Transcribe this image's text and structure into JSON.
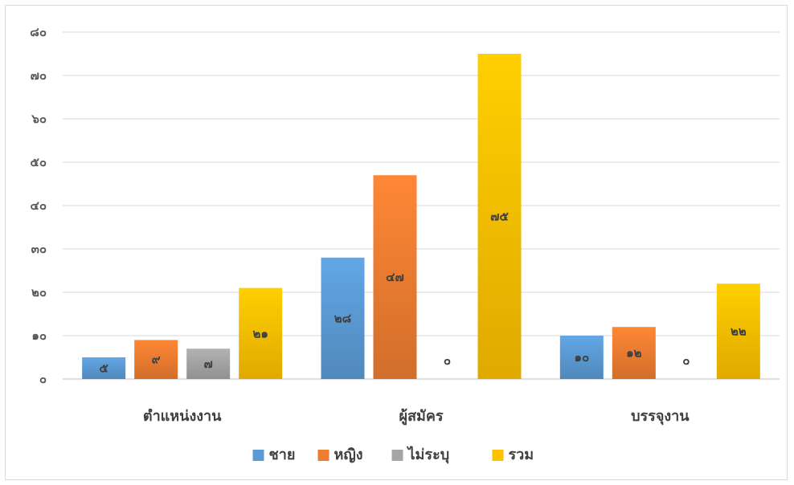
{
  "chart_data": {
    "type": "bar",
    "categories": [
      "ตำแหน่งงาน",
      "ผู้สมัคร",
      "บรรจุงาน"
    ],
    "series": [
      {
        "name": "ชาย",
        "values": [
          5,
          28,
          10
        ],
        "labels": [
          "๕",
          "๒๘",
          "๑๐"
        ],
        "color": "#5b9bd5"
      },
      {
        "name": "หญิง",
        "values": [
          9,
          47,
          12
        ],
        "labels": [
          "๙",
          "๔๗",
          "๑๒"
        ],
        "color": "#ed7d31"
      },
      {
        "name": "ไม่ระบุ",
        "values": [
          7,
          0,
          0
        ],
        "labels": [
          "๗",
          "๐",
          "๐"
        ],
        "color": "#a5a5a5"
      },
      {
        "name": "รวม",
        "values": [
          21,
          75,
          22
        ],
        "labels": [
          "๒๑",
          "๗๕",
          "๒๒"
        ],
        "color": "#ffc000"
      }
    ],
    "ylim": [
      0,
      80
    ],
    "yticks": [
      0,
      10,
      20,
      30,
      40,
      50,
      60,
      70,
      80
    ],
    "ytick_labels": [
      "๐",
      "๑๐",
      "๒๐",
      "๓๐",
      "๔๐",
      "๕๐",
      "๖๐",
      "๗๐",
      "๘๐"
    ],
    "grid": true,
    "legend": "bottom"
  }
}
